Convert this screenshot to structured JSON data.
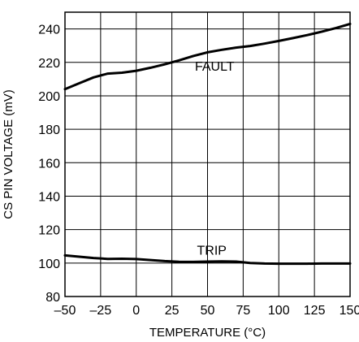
{
  "chart_data": {
    "type": "line",
    "xlabel": "TEMPERATURE (°C)",
    "ylabel": "CS PIN VOLTAGE (mV)",
    "xlim": [
      -50,
      150
    ],
    "ylim": [
      80,
      250
    ],
    "x_ticks": [
      -50,
      -25,
      0,
      25,
      50,
      75,
      100,
      125,
      150
    ],
    "x_tick_labels": [
      "–50",
      "–25",
      "0",
      "25",
      "50",
      "75",
      "100",
      "125",
      "150"
    ],
    "y_ticks": [
      80,
      100,
      120,
      140,
      160,
      180,
      200,
      220,
      240
    ],
    "y_tick_labels": [
      "80",
      "100",
      "120",
      "140",
      "160",
      "180",
      "200",
      "220",
      "240"
    ],
    "grid": true,
    "line_color": "#000000",
    "series": [
      {
        "name": "FAULT",
        "x": [
          -50,
          -40,
          -30,
          -20,
          -10,
          0,
          10,
          20,
          30,
          40,
          50,
          60,
          70,
          80,
          90,
          100,
          110,
          120,
          130,
          140,
          150
        ],
        "y": [
          204,
          207.5,
          211,
          213.3,
          213.8,
          215,
          216.8,
          218.8,
          221.2,
          223.8,
          226,
          227.5,
          228.8,
          229.8,
          231.2,
          232.8,
          234.5,
          236.3,
          238.3,
          240.5,
          243
        ]
      },
      {
        "name": "TRIP",
        "x": [
          -50,
          -40,
          -30,
          -20,
          -10,
          0,
          10,
          20,
          30,
          40,
          50,
          60,
          70,
          80,
          90,
          100,
          110,
          120,
          130,
          140,
          150
        ],
        "y": [
          104.6,
          103.8,
          103,
          102.5,
          102.6,
          102.4,
          101.8,
          101.2,
          100.8,
          100.7,
          100.9,
          101,
          100.9,
          100,
          99.7,
          99.6,
          99.6,
          99.6,
          99.7,
          99.7,
          99.7
        ]
      }
    ],
    "annotations": [
      {
        "text": "FAULT",
        "x": 55,
        "y": 215
      },
      {
        "text": "TRIP",
        "x": 53,
        "y": 105
      }
    ]
  }
}
